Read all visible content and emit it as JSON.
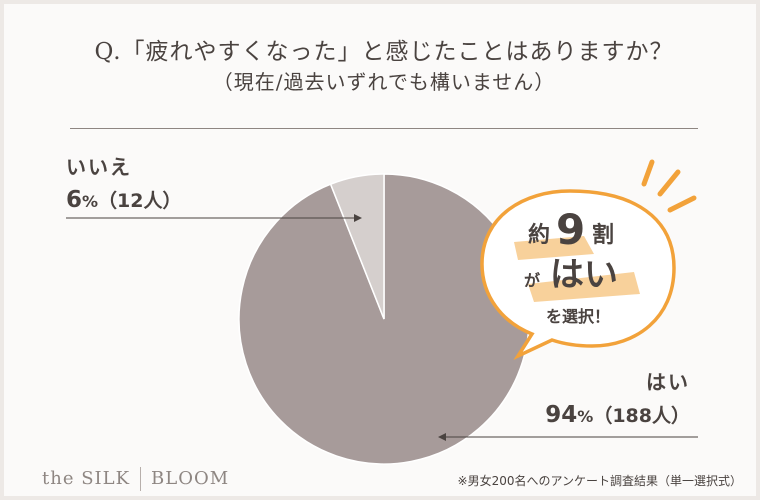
{
  "question": {
    "title": "Q.「疲れやすくなった」と感じたことはありますか？",
    "subtitle": "（現在/過去いずれでも構いません）"
  },
  "callout": {
    "line1_a": "約",
    "line1_b": "9",
    "line1_c": "割",
    "line2_a": "が",
    "line2_b": "はい",
    "line3": "を選択！"
  },
  "footnote": "※男女200名へのアンケート調査結果（単一選択式）",
  "brand": {
    "left": "the SILK",
    "right": "BLOOM"
  },
  "colors": {
    "hai": "#a79b9a",
    "iie": "#d5cfcd",
    "accent": "#f2a23a",
    "text": "#4a4340"
  },
  "chart_data": {
    "type": "pie",
    "slices": [
      {
        "label": "はい",
        "percent": 94,
        "count": 188,
        "pct_text": "94",
        "count_text": "（188人）"
      },
      {
        "label": "いいえ",
        "percent": 6,
        "count": 12,
        "pct_text": "6",
        "count_text": "（12人）"
      }
    ],
    "unit": "%"
  }
}
